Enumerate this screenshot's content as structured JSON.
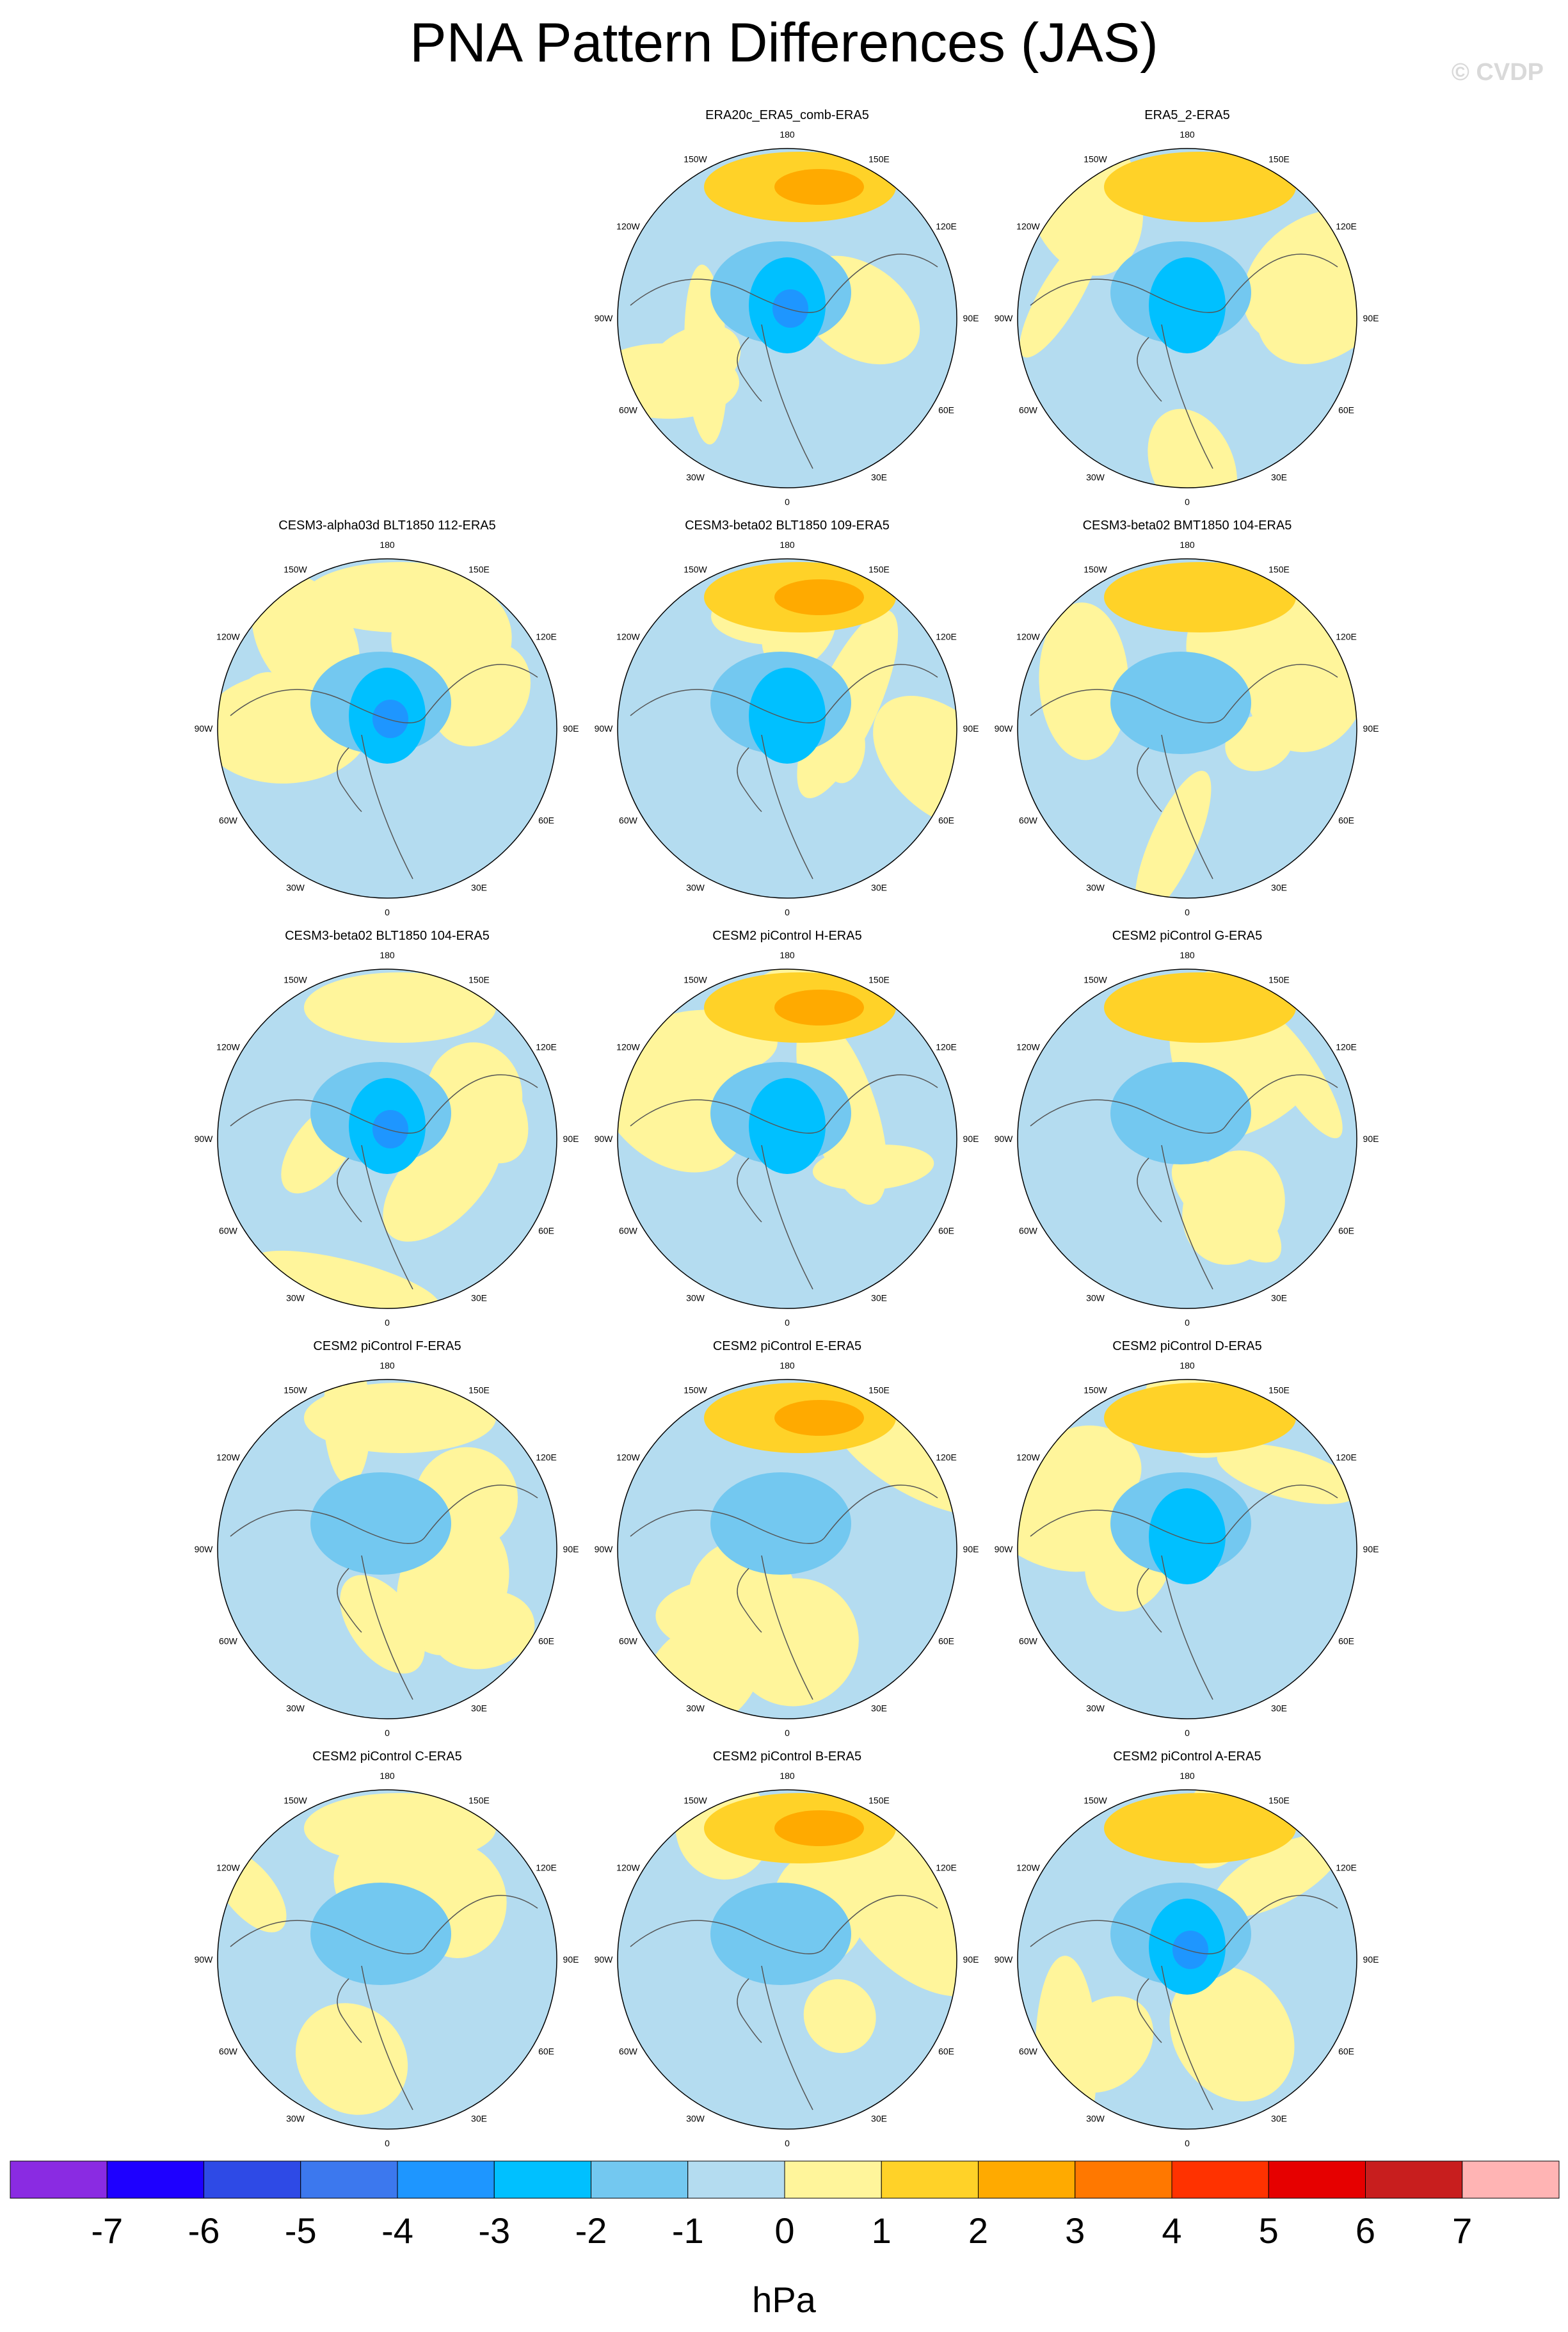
{
  "title": "PNA Pattern Differences (JAS)",
  "watermark": "© CVDP",
  "colorbar": {
    "unit": "hPa",
    "tick_labels": [
      "-7",
      "-6",
      "-5",
      "-4",
      "-3",
      "-2",
      "-1",
      "0",
      "1",
      "2",
      "3",
      "4",
      "5",
      "6",
      "7"
    ],
    "colors": [
      "#8a2be2",
      "#1e00ff",
      "#2e4ae6",
      "#3c78ee",
      "#1e96ff",
      "#00c0ff",
      "#73c8f0",
      "#b4dcf0",
      "#fff59b",
      "#ffd228",
      "#ffaa00",
      "#ff7800",
      "#ff3200",
      "#e60000",
      "#c81e1e",
      "#ffb4b4"
    ]
  },
  "chart_data": {
    "type": "heatmap",
    "projection": "north-polar-stereographic",
    "field": "PNA pattern difference",
    "units": "hPa",
    "levels": [
      -7,
      -6,
      -5,
      -4,
      -3,
      -2,
      -1,
      0,
      1,
      2,
      3,
      4,
      5,
      6,
      7
    ],
    "lon_labels": [
      "180",
      "150E",
      "120E",
      "90E",
      "60E",
      "30E",
      "0",
      "30W",
      "60W",
      "90W",
      "120W",
      "150W"
    ],
    "panels": [
      {
        "title": "ERA20c_ERA5_comb-ERA5",
        "row": 0,
        "col": 1,
        "pattern": 1
      },
      {
        "title": "ERA5_2-ERA5",
        "row": 0,
        "col": 2,
        "pattern": 2
      },
      {
        "title": "CESM3-alpha03d BLT1850 112-ERA5",
        "row": 1,
        "col": 0,
        "pattern": 3
      },
      {
        "title": "CESM3-beta02 BLT1850 109-ERA5",
        "row": 1,
        "col": 1,
        "pattern": 4
      },
      {
        "title": "CESM3-beta02 BMT1850 104-ERA5",
        "row": 1,
        "col": 2,
        "pattern": 5
      },
      {
        "title": "CESM3-beta02 BLT1850 104-ERA5",
        "row": 2,
        "col": 0,
        "pattern": 6
      },
      {
        "title": "CESM2 piControl H-ERA5",
        "row": 2,
        "col": 1,
        "pattern": 7
      },
      {
        "title": "CESM2 piControl G-ERA5",
        "row": 2,
        "col": 2,
        "pattern": 8
      },
      {
        "title": "CESM2 piControl F-ERA5",
        "row": 3,
        "col": 0,
        "pattern": 9
      },
      {
        "title": "CESM2 piControl E-ERA5",
        "row": 3,
        "col": 1,
        "pattern": 10
      },
      {
        "title": "CESM2 piControl D-ERA5",
        "row": 3,
        "col": 2,
        "pattern": 11
      },
      {
        "title": "CESM2 piControl C-ERA5",
        "row": 4,
        "col": 0,
        "pattern": 12
      },
      {
        "title": "CESM2 piControl B-ERA5",
        "row": 4,
        "col": 1,
        "pattern": 13
      },
      {
        "title": "CESM2 piControl A-ERA5",
        "row": 4,
        "col": 2,
        "pattern": 14
      }
    ]
  }
}
